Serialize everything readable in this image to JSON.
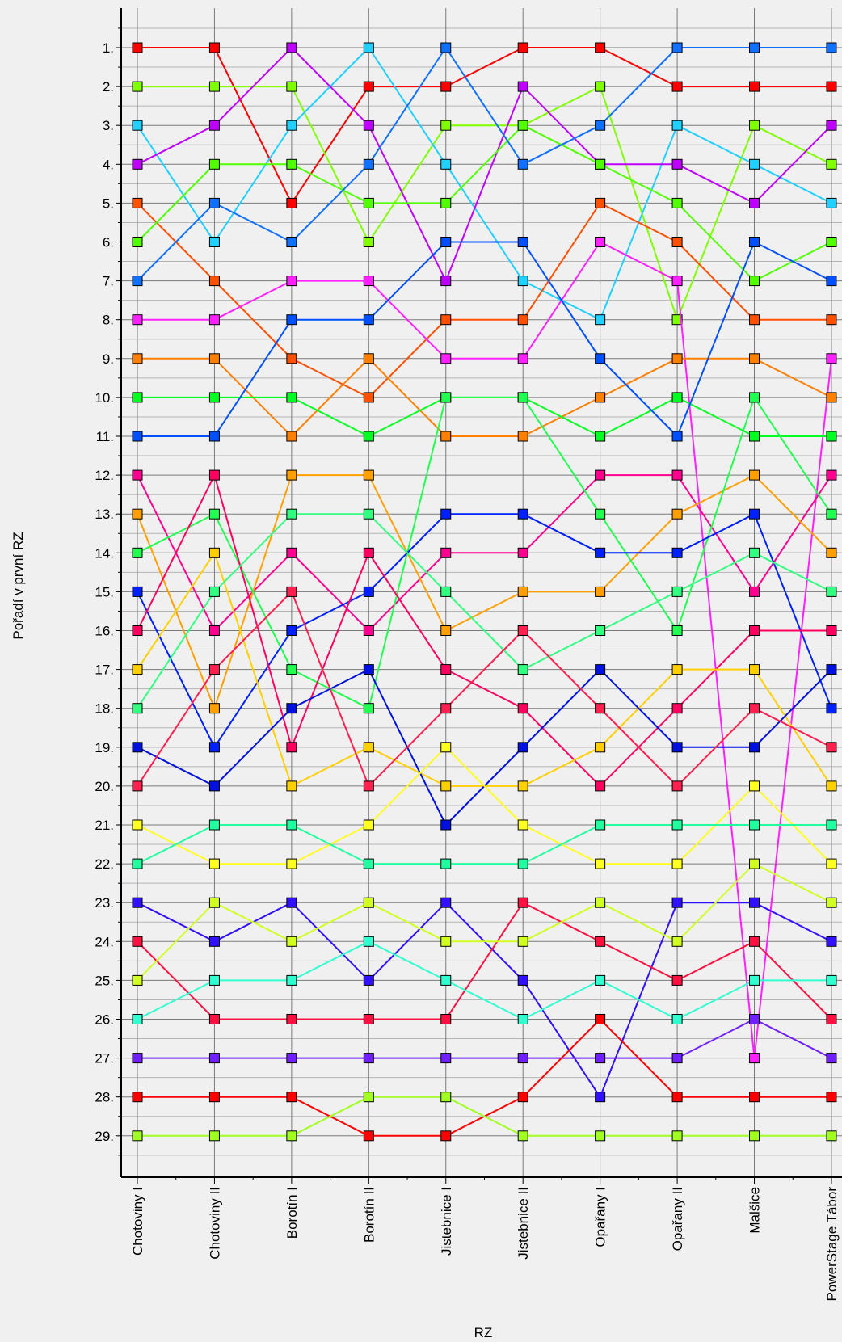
{
  "chart_data": {
    "type": "line",
    "title": "",
    "xlabel": "RZ",
    "ylabel": "Pořadí v první RZ",
    "x_categories": [
      "Chotoviny I",
      "Chotoviny II",
      "Borotín I",
      "Borotín II",
      "Jistebnice I",
      "Jistebnice II",
      "Opařany I",
      "Opařany II",
      "Malšice",
      "PowerStage Tábor"
    ],
    "y_tick_labels": [
      "1.",
      "2.",
      "3.",
      "4.",
      "5.",
      "6.",
      "7.",
      "8.",
      "9.",
      "10.",
      "11.",
      "12.",
      "13.",
      "14.",
      "15.",
      "16.",
      "17.",
      "18.",
      "19.",
      "20.",
      "21.",
      "22.",
      "23.",
      "24.",
      "25.",
      "26.",
      "27.",
      "28.",
      "29."
    ],
    "ylim": [
      30,
      0
    ],
    "y_reversed": true,
    "grid": true,
    "legend": "none",
    "series": [
      {
        "color": "#ff0000",
        "values": [
          1,
          1,
          5,
          2,
          2,
          1,
          1,
          2,
          2,
          2
        ]
      },
      {
        "color": "#80ff00",
        "values": [
          2,
          2,
          2,
          6,
          3,
          3,
          2,
          8,
          3,
          4
        ]
      },
      {
        "color": "#20d0ff",
        "values": [
          3,
          6,
          3,
          1,
          4,
          7,
          8,
          3,
          4,
          5
        ]
      },
      {
        "color": "#c000ff",
        "values": [
          4,
          3,
          1,
          3,
          7,
          2,
          4,
          4,
          5,
          3
        ]
      },
      {
        "color": "#ff5000",
        "values": [
          5,
          7,
          9,
          10,
          8,
          8,
          5,
          6,
          8,
          8
        ]
      },
      {
        "color": "#50ff00",
        "values": [
          6,
          4,
          4,
          5,
          5,
          3,
          4,
          5,
          7,
          6
        ]
      },
      {
        "color": "#1070ff",
        "values": [
          7,
          5,
          6,
          4,
          1,
          4,
          3,
          1,
          1,
          1
        ]
      },
      {
        "color": "#ff20ff",
        "values": [
          8,
          8,
          7,
          7,
          9,
          9,
          6,
          7,
          27,
          9
        ]
      },
      {
        "color": "#ff8000",
        "values": [
          9,
          9,
          11,
          9,
          11,
          11,
          10,
          9,
          9,
          10
        ]
      },
      {
        "color": "#00ff20",
        "values": [
          10,
          10,
          10,
          11,
          10,
          10,
          11,
          10,
          11,
          11
        ]
      },
      {
        "color": "#0050ff",
        "values": [
          11,
          11,
          8,
          8,
          6,
          6,
          9,
          11,
          6,
          7
        ]
      },
      {
        "color": "#ff0090",
        "values": [
          12,
          16,
          14,
          16,
          14,
          14,
          12,
          12,
          15,
          12
        ]
      },
      {
        "color": "#ffa000",
        "values": [
          13,
          18,
          12,
          12,
          16,
          15,
          15,
          13,
          12,
          14
        ]
      },
      {
        "color": "#20ff50",
        "values": [
          14,
          13,
          17,
          18,
          10,
          10,
          13,
          16,
          10,
          13
        ]
      },
      {
        "color": "#0020ff",
        "values": [
          15,
          19,
          16,
          15,
          13,
          13,
          14,
          14,
          13,
          18
        ]
      },
      {
        "color": "#ff0060",
        "values": [
          16,
          12,
          19,
          14,
          17,
          18,
          20,
          18,
          16,
          16
        ]
      },
      {
        "color": "#ffd000",
        "values": [
          17,
          14,
          20,
          19,
          20,
          20,
          19,
          17,
          17,
          20
        ]
      },
      {
        "color": "#30ff80",
        "values": [
          18,
          15,
          13,
          13,
          15,
          17,
          16,
          15,
          14,
          15
        ]
      },
      {
        "color": "#0010e0",
        "values": [
          19,
          20,
          18,
          17,
          21,
          19,
          17,
          19,
          19,
          17
        ]
      },
      {
        "color": "#ff2050",
        "values": [
          20,
          17,
          15,
          20,
          18,
          16,
          18,
          20,
          18,
          19
        ]
      },
      {
        "color": "#ffff20",
        "values": [
          21,
          22,
          22,
          21,
          19,
          21,
          22,
          22,
          20,
          22
        ]
      },
      {
        "color": "#20ffa0",
        "values": [
          22,
          21,
          21,
          22,
          22,
          22,
          21,
          21,
          21,
          21
        ]
      },
      {
        "color": "#3010ff",
        "values": [
          23,
          24,
          23,
          25,
          23,
          25,
          28,
          23,
          23,
          24
        ]
      },
      {
        "color": "#ff1040",
        "values": [
          24,
          26,
          26,
          26,
          26,
          23,
          24,
          25,
          24,
          26
        ]
      },
      {
        "color": "#d0ff20",
        "values": [
          25,
          23,
          24,
          23,
          24,
          24,
          23,
          24,
          22,
          23
        ]
      },
      {
        "color": "#30ffd0",
        "values": [
          26,
          25,
          25,
          24,
          25,
          26,
          25,
          26,
          25,
          25
        ]
      },
      {
        "color": "#7020ff",
        "values": [
          27,
          27,
          27,
          27,
          27,
          27,
          27,
          27,
          26,
          27
        ]
      },
      {
        "color": "#ff0000",
        "values": [
          28,
          28,
          28,
          29,
          29,
          28,
          26,
          28,
          28,
          28
        ]
      },
      {
        "color": "#a0ff20",
        "values": [
          29,
          29,
          29,
          28,
          28,
          29,
          29,
          29,
          29,
          29
        ]
      }
    ]
  }
}
